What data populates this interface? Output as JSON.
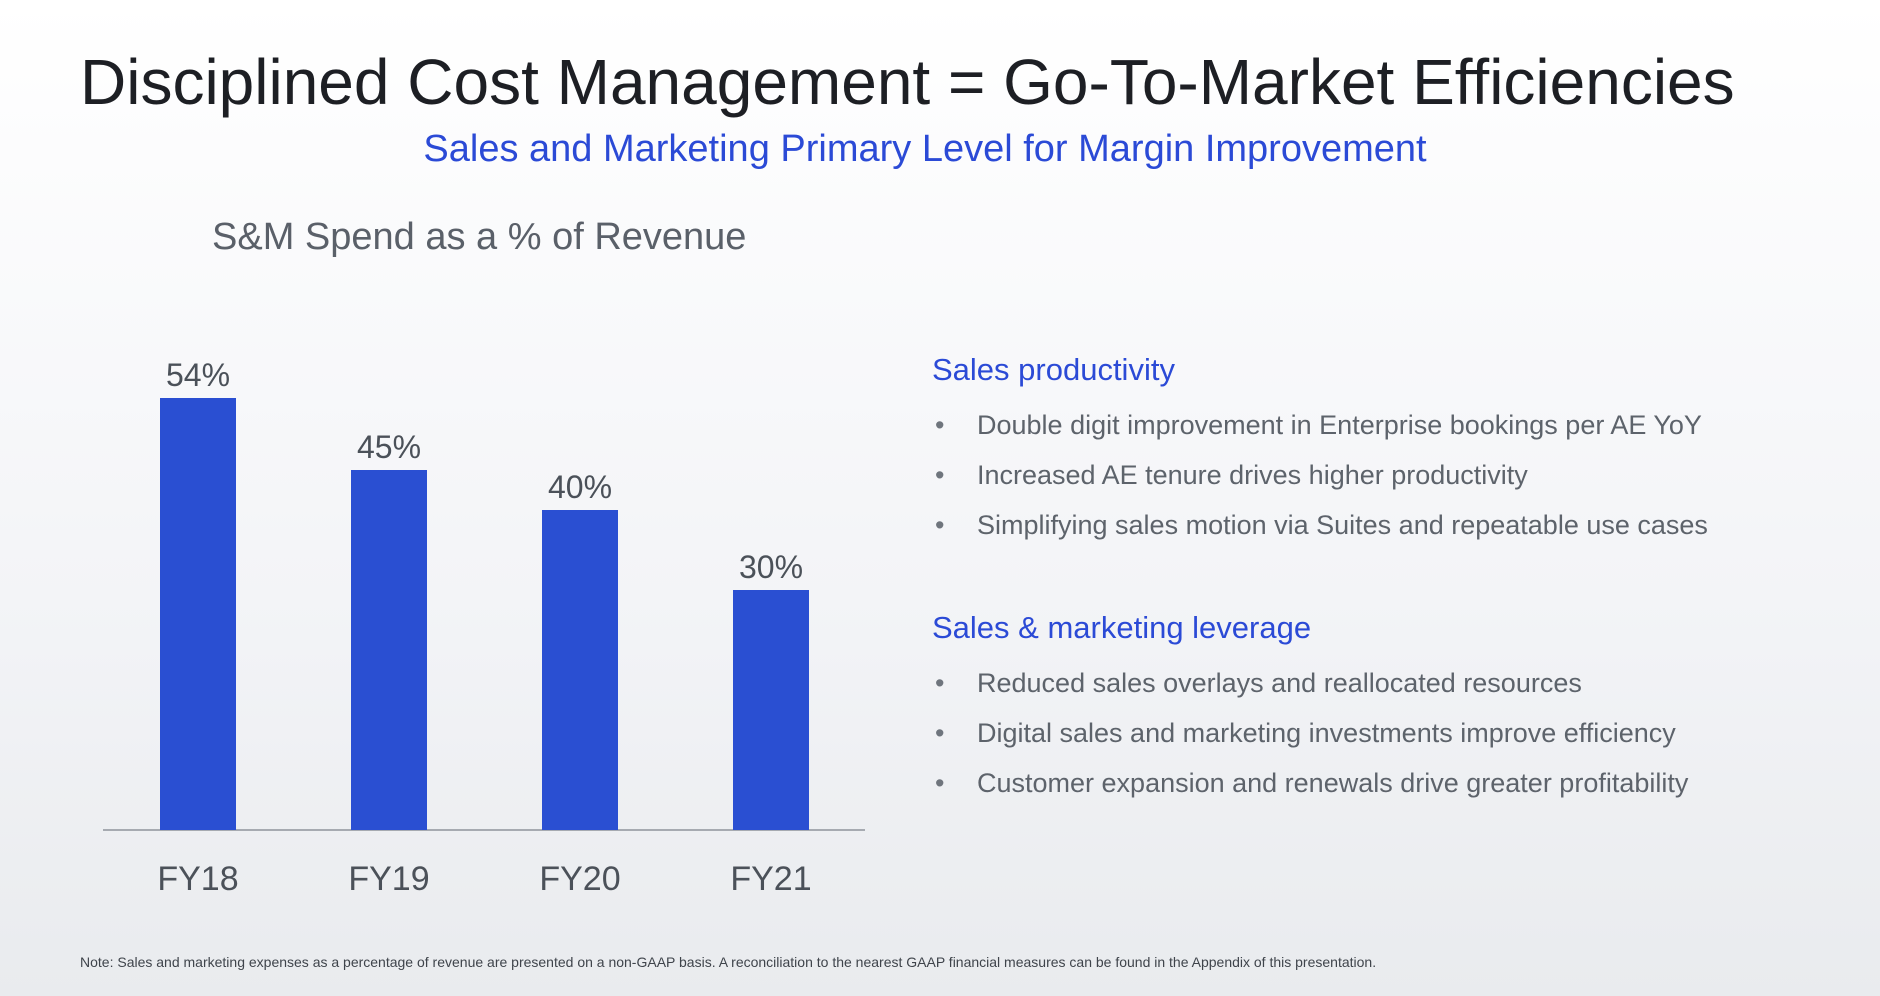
{
  "header": {
    "title": "Disciplined Cost Management = Go-To-Market Efficiencies",
    "subtitle": "Sales and Marketing Primary Level for Margin Improvement"
  },
  "chart_data": {
    "type": "bar",
    "title": "S&M Spend as a % of Revenue",
    "categories": [
      "FY18",
      "FY19",
      "FY20",
      "FY21"
    ],
    "values": [
      54,
      45,
      40,
      30
    ],
    "value_labels": [
      "54%",
      "45%",
      "40%",
      "30%"
    ],
    "xlabel": "",
    "ylabel": "",
    "ylim": [
      0,
      60
    ],
    "grid": false,
    "legend": "none",
    "bar_color": "#2a4fd2",
    "axis_color": "#8e949b"
  },
  "sections": [
    {
      "heading": "Sales productivity",
      "bullets": [
        "Double digit improvement in Enterprise bookings per AE YoY",
        "Increased AE tenure drives higher productivity",
        "Simplifying sales motion via Suites and repeatable use cases"
      ]
    },
    {
      "heading": "Sales & marketing leverage",
      "bullets": [
        "Reduced sales overlays and reallocated resources",
        "Digital sales and marketing investments improve efficiency",
        "Customer expansion and renewals drive greater profitability"
      ]
    }
  ],
  "bullet_glyph": "•",
  "footnote": "Note: Sales and marketing expenses as a percentage of revenue are presented on a non-GAAP basis. A reconciliation to the nearest GAAP financial measures can be found in the Appendix of this presentation."
}
